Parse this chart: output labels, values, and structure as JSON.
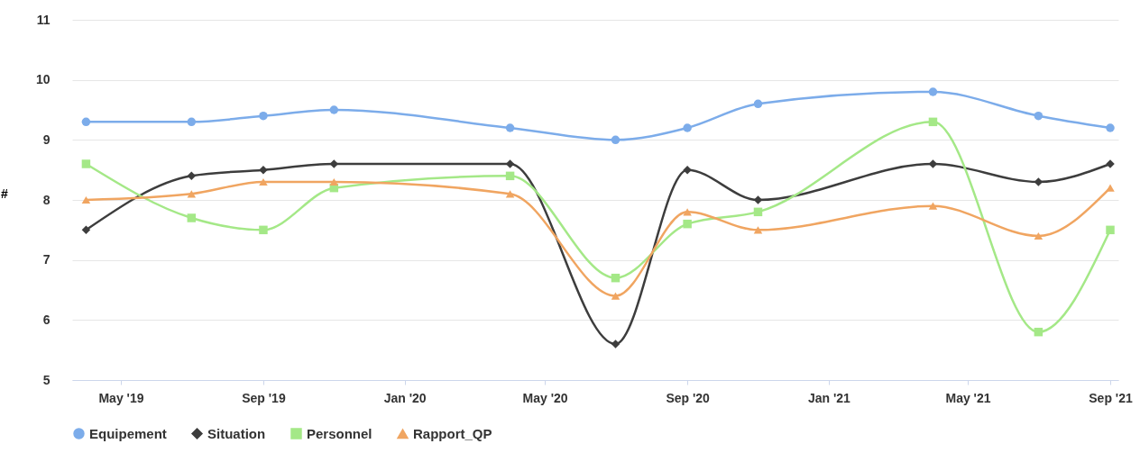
{
  "chart_data": {
    "type": "line",
    "ylabel": "#",
    "x": [
      "2019-04-01",
      "2019-07-01",
      "2019-09-01",
      "2019-11-01",
      "2020-04-01",
      "2020-07-01",
      "2020-09-01",
      "2020-11-01",
      "2021-04-01",
      "2021-07-01",
      "2021-09-01"
    ],
    "xlim": [
      "2019-03-20",
      "2021-09-08"
    ],
    "xticks": [
      {
        "value": "2019-05-01",
        "label": "May '19"
      },
      {
        "value": "2019-09-01",
        "label": "Sep '19"
      },
      {
        "value": "2020-01-01",
        "label": "Jan '20"
      },
      {
        "value": "2020-05-01",
        "label": "May '20"
      },
      {
        "value": "2020-09-01",
        "label": "Sep '20"
      },
      {
        "value": "2021-01-01",
        "label": "Jan '21"
      },
      {
        "value": "2021-05-01",
        "label": "May '21"
      },
      {
        "value": "2021-09-01",
        "label": "Sep '21"
      }
    ],
    "ylim": [
      5,
      11
    ],
    "yticks": [
      5,
      6,
      7,
      8,
      9,
      10,
      11
    ],
    "grid": "y",
    "legend": "bottom",
    "series": [
      {
        "name": "Equipement",
        "color": "#7cacea",
        "marker": "circle",
        "values": [
          9.3,
          9.3,
          9.4,
          9.5,
          9.2,
          9.0,
          9.2,
          9.6,
          9.8,
          9.4,
          9.2
        ]
      },
      {
        "name": "Situation",
        "color": "#3d3d3d",
        "marker": "diamond",
        "values": [
          7.5,
          8.4,
          8.5,
          8.6,
          8.6,
          5.6,
          8.5,
          8.0,
          8.6,
          8.3,
          8.6
        ]
      },
      {
        "name": "Personnel",
        "color": "#a4e887",
        "marker": "square",
        "values": [
          8.6,
          7.7,
          7.5,
          8.2,
          8.4,
          6.7,
          7.6,
          7.8,
          9.3,
          5.8,
          7.5
        ]
      },
      {
        "name": "Rapport_QP",
        "color": "#f0a561",
        "marker": "triangle",
        "values": [
          8.0,
          8.1,
          8.3,
          8.3,
          8.1,
          6.4,
          7.8,
          7.5,
          7.9,
          7.4,
          8.2
        ]
      }
    ]
  }
}
